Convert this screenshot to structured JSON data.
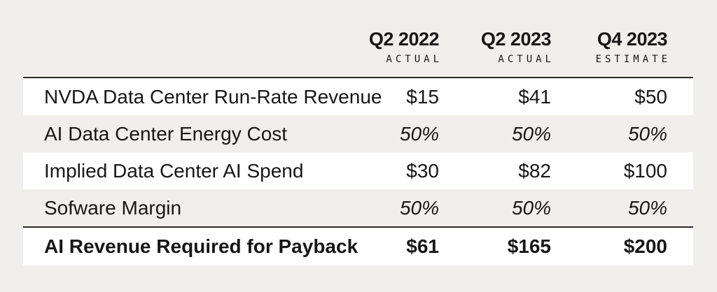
{
  "table": {
    "columns": [
      {
        "period": "Q2 2022",
        "sub": "ACTUAL"
      },
      {
        "period": "Q2 2023",
        "sub": "ACTUAL"
      },
      {
        "period": "Q4 2023",
        "sub": "ESTIMATE"
      }
    ],
    "rows": [
      {
        "label": "NVDA Data Center Run-Rate Revenue",
        "values": [
          "$15",
          "$41",
          "$50"
        ],
        "style": "normal"
      },
      {
        "label": "AI Data Center Energy Cost",
        "values": [
          "50%",
          "50%",
          "50%"
        ],
        "style": "italic"
      },
      {
        "label": "Implied Data Center AI Spend",
        "values": [
          "$30",
          "$82",
          "$100"
        ],
        "style": "normal"
      },
      {
        "label": "Sofware Margin",
        "values": [
          "50%",
          "50%",
          "50%"
        ],
        "style": "italic"
      },
      {
        "label": "AI Revenue Required for Payback",
        "values": [
          "$61",
          "$165",
          "$200"
        ],
        "style": "total"
      }
    ],
    "colors": {
      "background": "#f1efeb",
      "row_white": "#ffffff",
      "text": "#171717",
      "rule": "#2b2b2b"
    }
  }
}
